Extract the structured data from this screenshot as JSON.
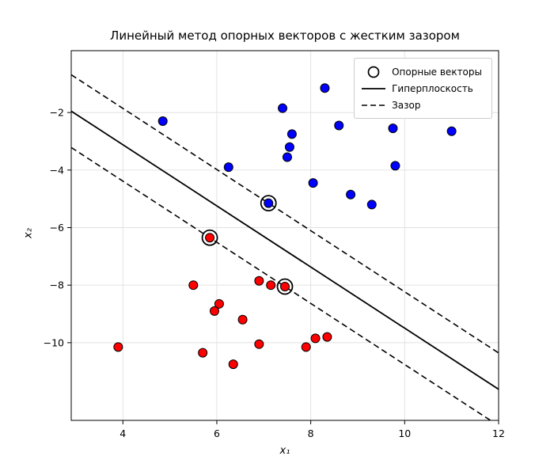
{
  "chart_data": {
    "type": "scatter",
    "title": "Линейный метод опорных векторов с жестким зазором",
    "xlabel": "x₁",
    "ylabel": "x₂",
    "xlim": [
      2.9,
      12.0
    ],
    "ylim": [
      -12.7,
      0.15
    ],
    "xticks": [
      4,
      6,
      8,
      10,
      12
    ],
    "yticks": [
      -2,
      -4,
      -6,
      -8,
      -10
    ],
    "grid": true,
    "colors": {
      "class_positive": "#0000ff",
      "class_negative": "#ff0000",
      "line": "#000000",
      "grid": "#e0e0e0"
    },
    "legend": {
      "position": "upper right",
      "entries": [
        {
          "label": "Опорные векторы",
          "marker": "open-circle"
        },
        {
          "label": "Гиперплоскость",
          "marker": "solid-line"
        },
        {
          "label": "Зазор",
          "marker": "dashed-line"
        }
      ]
    },
    "series": [
      {
        "name": "class-positive",
        "color": "#0000ff",
        "points": [
          [
            4.85,
            -2.3
          ],
          [
            7.4,
            -1.85
          ],
          [
            8.3,
            -1.15
          ],
          [
            7.6,
            -2.75
          ],
          [
            8.6,
            -2.45
          ],
          [
            11.0,
            -2.65
          ],
          [
            9.75,
            -2.55
          ],
          [
            7.55,
            -3.2
          ],
          [
            7.5,
            -3.55
          ],
          [
            6.25,
            -3.9
          ],
          [
            9.8,
            -3.85
          ],
          [
            8.05,
            -4.45
          ],
          [
            8.85,
            -4.85
          ],
          [
            9.3,
            -5.2
          ],
          [
            7.1,
            -5.15
          ]
        ]
      },
      {
        "name": "class-negative",
        "color": "#ff0000",
        "points": [
          [
            5.85,
            -6.35
          ],
          [
            5.5,
            -8.0
          ],
          [
            6.9,
            -7.85
          ],
          [
            7.15,
            -8.0
          ],
          [
            7.45,
            -8.05
          ],
          [
            6.05,
            -8.65
          ],
          [
            5.95,
            -8.9
          ],
          [
            6.55,
            -9.2
          ],
          [
            6.9,
            -10.05
          ],
          [
            3.9,
            -10.15
          ],
          [
            5.7,
            -10.35
          ],
          [
            7.9,
            -10.15
          ],
          [
            8.1,
            -9.85
          ],
          [
            8.35,
            -9.8
          ],
          [
            6.35,
            -10.75
          ]
        ]
      }
    ],
    "lines": [
      {
        "name": "hyperplane",
        "style": "solid",
        "slope": -1.0625,
        "intercept": 1.13
      },
      {
        "name": "margin-upper",
        "style": "dashed",
        "slope": -1.0625,
        "intercept": 2.394
      },
      {
        "name": "margin-lower",
        "style": "dashed",
        "slope": -1.0625,
        "intercept": -0.134
      }
    ],
    "support_vectors": [
      [
        7.1,
        -5.15
      ],
      [
        5.85,
        -6.35
      ],
      [
        7.45,
        -8.05
      ]
    ]
  }
}
